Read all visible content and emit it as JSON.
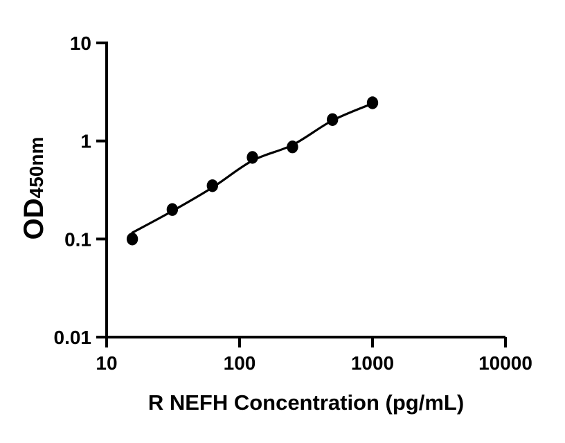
{
  "figure": {
    "background": "#ffffff",
    "ink": "#000000"
  },
  "chart_data": {
    "type": "scatter",
    "title": "",
    "xlabel": "R NEFH Concentration (pg/mL)",
    "ylabel": "OD450nm",
    "ylabel_main": "OD",
    "ylabel_sub": "450nm",
    "x_scale": "log10",
    "y_scale": "log10",
    "xlim": [
      10,
      10000
    ],
    "ylim": [
      0.01,
      10
    ],
    "x_ticks": [
      10,
      100,
      1000,
      10000
    ],
    "x_tick_labels": [
      "10",
      "100",
      "1000",
      "10000"
    ],
    "y_ticks": [
      10,
      1,
      0.1,
      0.01
    ],
    "y_tick_labels": [
      "10",
      "1",
      "0.1",
      "0.01"
    ],
    "grid": false,
    "legend": "none",
    "series": [
      {
        "name": "standard-points",
        "type": "scatter",
        "marker": "filled-circle",
        "color": "#000000",
        "x": [
          15.6,
          31.2,
          62.5,
          125,
          250,
          500,
          1000
        ],
        "y": [
          0.1,
          0.2,
          0.35,
          0.68,
          0.87,
          1.65,
          2.45
        ]
      },
      {
        "name": "fit-line",
        "type": "line",
        "color": "#000000",
        "x": [
          15.6,
          31.2,
          62.5,
          125,
          250,
          500,
          1000
        ],
        "y": [
          0.116,
          0.193,
          0.335,
          0.63,
          0.91,
          1.62,
          2.41
        ]
      }
    ]
  }
}
